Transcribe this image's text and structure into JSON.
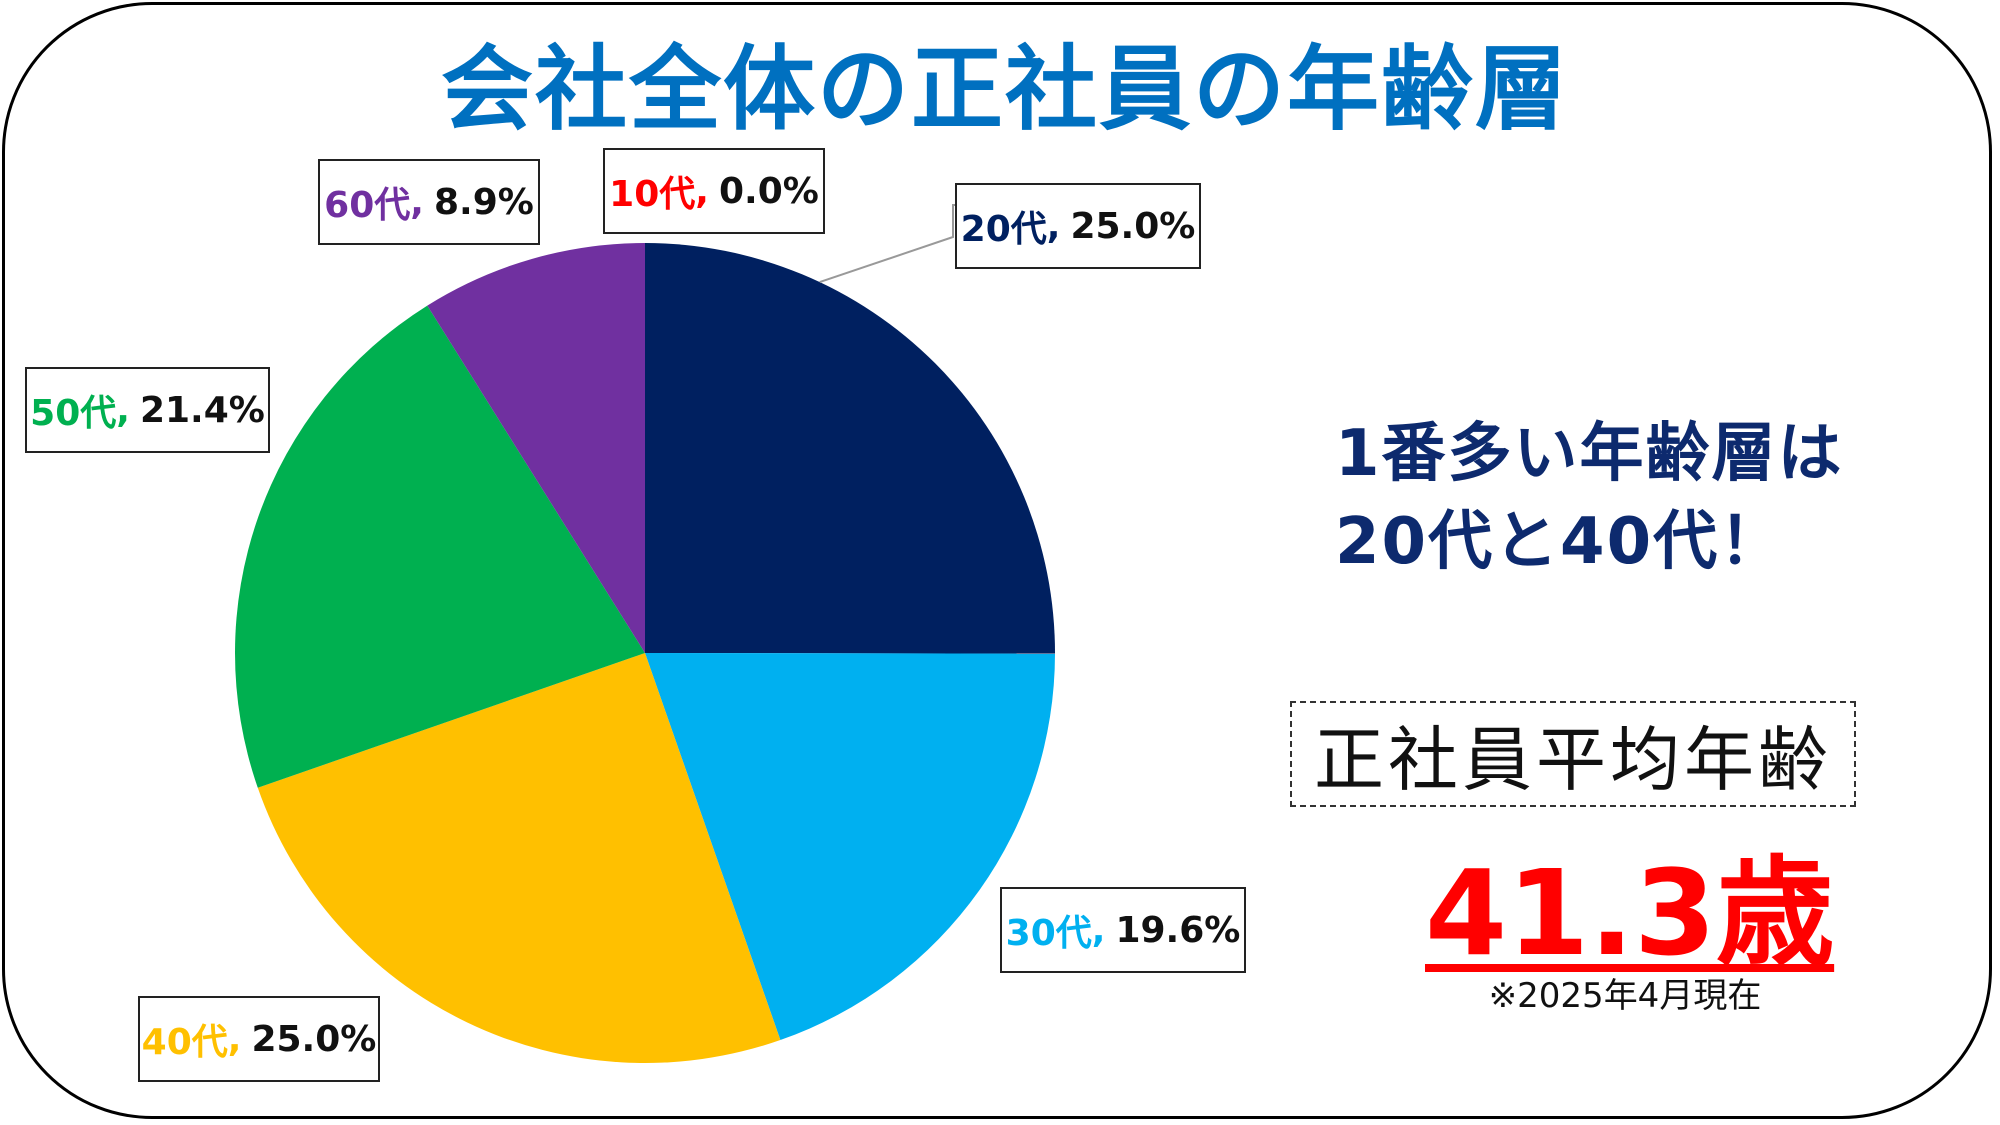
{
  "title": "会社全体の正社員の年齢層",
  "callout": {
    "line1": "1番多い年齢層は",
    "line2": "20代と40代！"
  },
  "average": {
    "label": "正社員平均年齢",
    "value": "41.3歳",
    "note": "※2025年4月現在"
  },
  "colors": {
    "title": "#0070c0",
    "callout": "#0d2a6e",
    "average_value": "#ff0000",
    "10代": "#ff0000",
    "20代": "#002060",
    "30代": "#00b0f0",
    "40代": "#ffc000",
    "50代": "#00b050",
    "60代": "#7030a0"
  },
  "chart_data": {
    "type": "pie",
    "categories": [
      "10代",
      "20代",
      "30代",
      "40代",
      "50代",
      "60代"
    ],
    "values": [
      0.0,
      25.0,
      19.6,
      25.0,
      21.4,
      8.9
    ],
    "value_labels": [
      "0.0%",
      "25.0%",
      "19.6%",
      "25.0%",
      "21.4%",
      "8.9%"
    ],
    "start": "top",
    "direction": "clockwise",
    "legend": "none",
    "data_labels": "category, value"
  }
}
